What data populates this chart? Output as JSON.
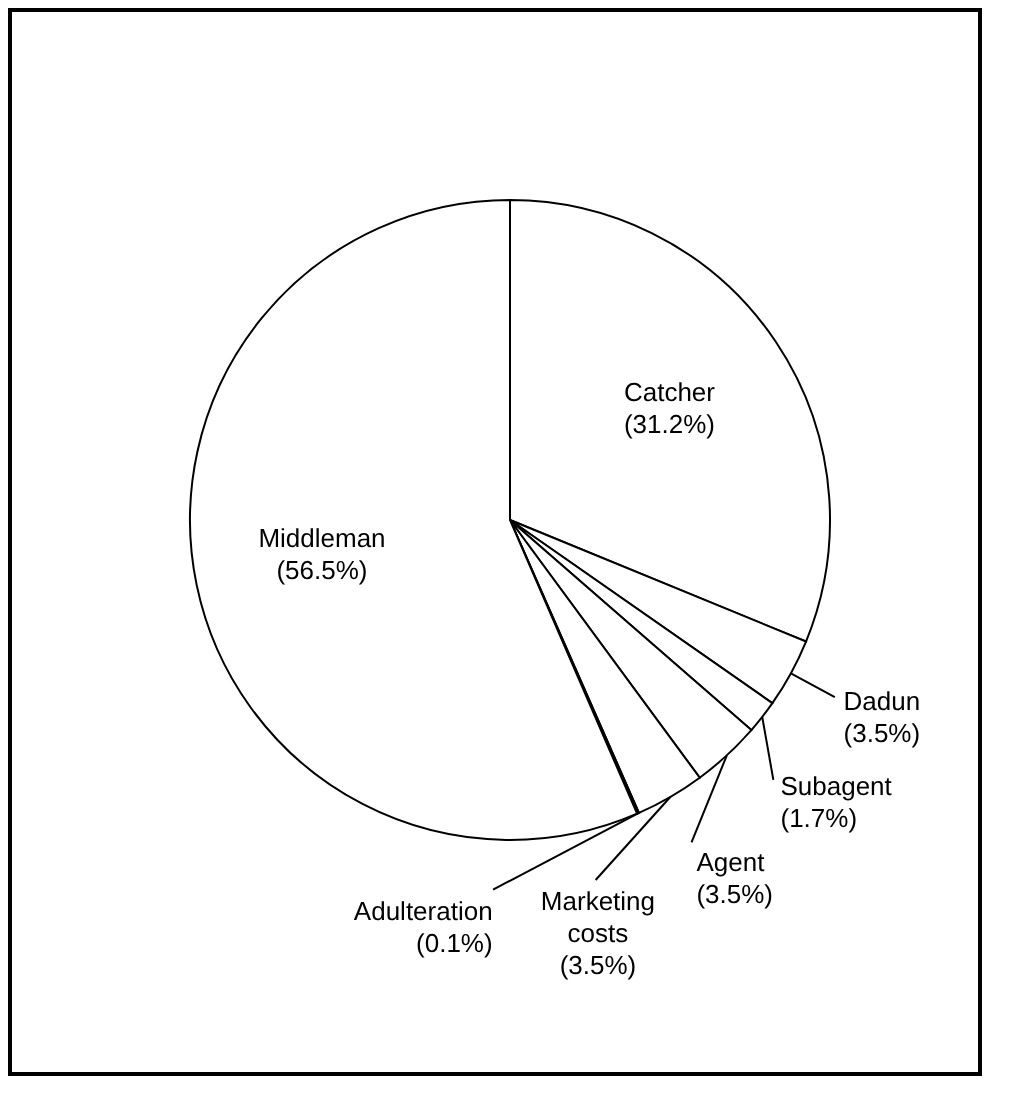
{
  "chart_data": {
    "type": "pie",
    "categories": [
      "Catcher",
      "Dadun",
      "Subagent",
      "Agent",
      "Marketing\ncosts",
      "Adulteration",
      "Middleman"
    ],
    "values": [
      31.2,
      3.5,
      1.7,
      3.5,
      3.5,
      0.1,
      56.5
    ],
    "value_labels": [
      "(31.2%)",
      "(3.5%)",
      "(1.7%)",
      "(3.5%)",
      "(3.5%)",
      "(0.1%)",
      "(56.5%)"
    ],
    "colors": [
      "#ffffff",
      "#ffffff",
      "#ffffff",
      "#ffffff",
      "#ffffff",
      "#ffffff",
      "#ffffff"
    ],
    "legend": false
  }
}
